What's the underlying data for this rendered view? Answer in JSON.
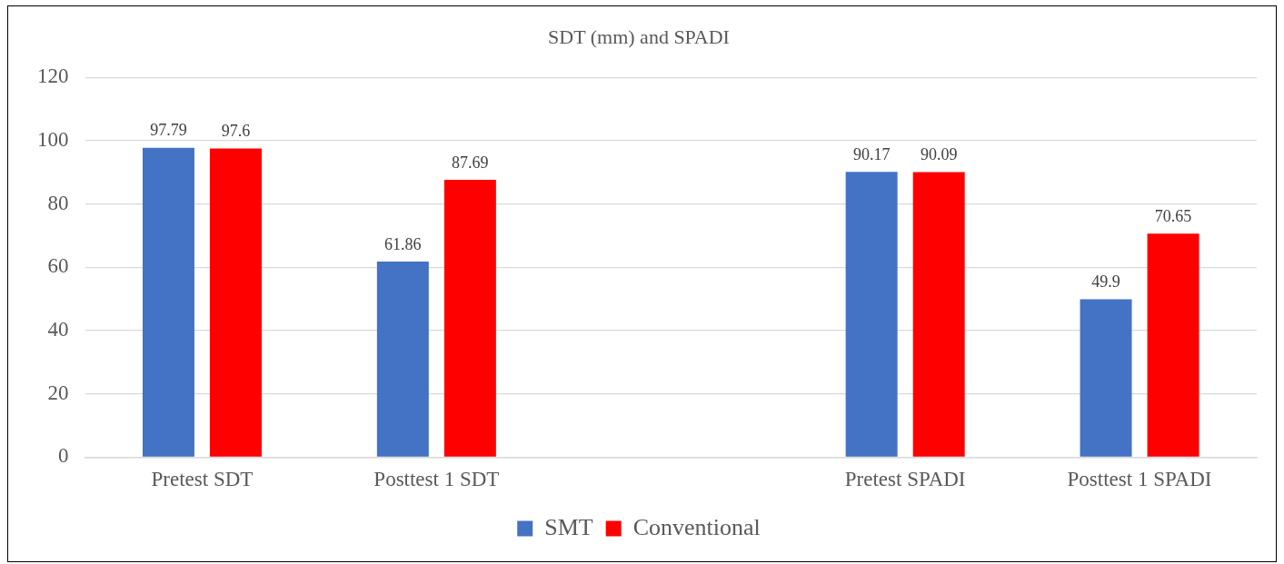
{
  "chart_data": {
    "type": "bar",
    "title": "SDT (mm) and SPADI",
    "categories": [
      "Pretest SDT",
      "Posttest 1 SDT",
      null,
      "Pretest SPADI",
      "Posttest 1 SPADI"
    ],
    "series": [
      {
        "name": "SMT",
        "color": "#4472c4",
        "values": [
          97.79,
          61.86,
          null,
          90.17,
          49.9
        ]
      },
      {
        "name": "Conventional",
        "color": "#ff0000",
        "values": [
          97.6,
          87.69,
          null,
          90.09,
          70.65
        ]
      }
    ],
    "ylim": [
      0,
      120
    ],
    "yticks": [
      0,
      20,
      40,
      60,
      80,
      100,
      120
    ],
    "grid": "y",
    "legend": "bottom",
    "data_labels": true
  }
}
